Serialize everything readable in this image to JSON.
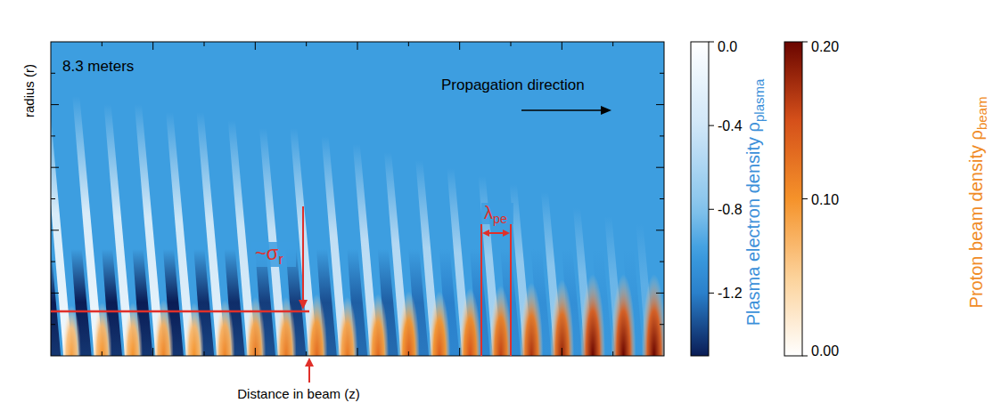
{
  "chart_data": {
    "type": "heatmap",
    "annotation": "8.3 meters",
    "direction_label": "Propagation direction",
    "ylabel": "radius (r)",
    "xlabel": "Distance in beam (z)",
    "sigma_label": {
      "text": "~σ",
      "subscript": "r"
    },
    "lambda_label": {
      "text": "λ",
      "subscript": "pe"
    },
    "tick_labels": false,
    "background_density": -1.0,
    "wake_min_density": [
      -1.5,
      -1.5,
      -1.5,
      -1.5,
      -1.5,
      -1.45,
      -1.45,
      -1.4,
      -1.4,
      -1.35,
      -1.3,
      -1.3,
      -1.25,
      -1.2,
      -1.2,
      -1.15,
      -1.1,
      -1.1,
      -1.05,
      -1.05
    ],
    "wake_max_density": [
      -0.1,
      -0.1,
      -0.15,
      -0.15,
      -0.2,
      -0.2,
      -0.25,
      -0.3,
      -0.3,
      -0.35,
      -0.4,
      -0.45,
      -0.5,
      -0.55,
      -0.6,
      -0.65,
      -0.7,
      -0.8,
      -0.85,
      -0.9
    ],
    "beam_peak_density": [
      0.09,
      0.1,
      0.1,
      0.11,
      0.1,
      0.11,
      0.12,
      0.12,
      0.13,
      0.12,
      0.13,
      0.14,
      0.14,
      0.15,
      0.16,
      0.17,
      0.18,
      0.2,
      0.2,
      0.2
    ],
    "colorbars": [
      {
        "name": "Plasma electron density ρ",
        "subscript": "plasma",
        "color": "#3b8fd9",
        "range": [
          -1.5,
          0
        ],
        "ticks": [
          {
            "value": 0,
            "label": "0.0"
          },
          -0.4,
          -0.8,
          -1.2
        ]
      },
      {
        "name": "Proton beam density ρ",
        "subscript": "beam",
        "color": "#f08a24",
        "range": [
          0,
          0.2
        ],
        "ticks": [
          {
            "value": 0.2,
            "label": "0.20"
          },
          {
            "value": 0.1,
            "label": "0.10"
          },
          {
            "value": 0,
            "label": "0.00"
          }
        ]
      }
    ]
  }
}
